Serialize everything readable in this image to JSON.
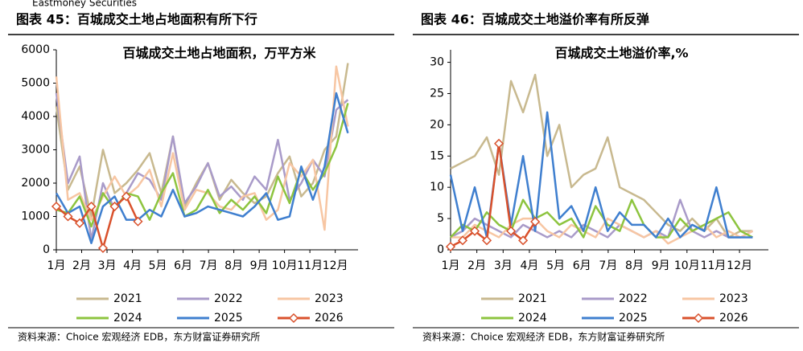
{
  "header": {
    "brand": "Eastmoney Securities"
  },
  "chart_data": [
    {
      "type": "line",
      "figure_title": "图表 45：百城成交土地占地面积有所下行",
      "title": "百城成交土地占地面积，万平方米",
      "source": "资料来源：Choice 宏观经济 EDB，东方财富证券研究所",
      "x": [
        1,
        1.46,
        1.92,
        2.38,
        2.84,
        3.3,
        3.76,
        4.22,
        4.68,
        5.14,
        5.6,
        6.06,
        6.52,
        6.98,
        7.44,
        7.9,
        8.36,
        8.82,
        9.28,
        9.74,
        10.2,
        10.66,
        11.12,
        11.58,
        12.04,
        12.5
      ],
      "xlim": [
        1,
        12.9
      ],
      "ylim": [
        0,
        6000
      ],
      "yticks": [
        0,
        1000,
        2000,
        3000,
        4000,
        5000,
        6000
      ],
      "xticks": [
        {
          "value": 1,
          "label": "1月"
        },
        {
          "value": 2,
          "label": "2月"
        },
        {
          "value": 3,
          "label": "3月"
        },
        {
          "value": 4,
          "label": "4月"
        },
        {
          "value": 5,
          "label": "5月"
        },
        {
          "value": 6,
          "label": "6月"
        },
        {
          "value": 7,
          "label": "7月"
        },
        {
          "value": 8,
          "label": "8月"
        },
        {
          "value": 9,
          "label": "9月"
        },
        {
          "value": 10,
          "label": "10月"
        },
        {
          "value": 11,
          "label": "11月"
        },
        {
          "value": 12,
          "label": "12月"
        }
      ],
      "series": [
        {
          "name": "2021",
          "color": "#c8b98f",
          "values": [
            4300,
            1800,
            2500,
            1000,
            3000,
            1700,
            2000,
            2400,
            2900,
            1700,
            3400,
            1300,
            2000,
            2600,
            1500,
            2100,
            1700,
            1400,
            1600,
            2300,
            2800,
            1600,
            2000,
            3000,
            3400,
            5600
          ]
        },
        {
          "name": "2022",
          "color": "#a99bc9",
          "values": [
            4700,
            2000,
            2800,
            300,
            2000,
            1200,
            1700,
            2300,
            2100,
            1500,
            3400,
            1400,
            1900,
            2600,
            1600,
            1900,
            1500,
            2200,
            1800,
            3300,
            1500,
            2000,
            2700,
            2200,
            4200,
            4500
          ]
        },
        {
          "name": "2023",
          "color": "#f7c6a3",
          "values": [
            5200,
            1500,
            1700,
            900,
            1600,
            2200,
            1600,
            1900,
            2400,
            1300,
            2900,
            1200,
            1800,
            1700,
            1300,
            1200,
            1600,
            1700,
            900,
            1200,
            2600,
            2200,
            2700,
            600,
            5500,
            3700
          ]
        },
        {
          "name": "2024",
          "color": "#8dc43f",
          "values": [
            1200,
            1100,
            1600,
            700,
            1700,
            1200,
            1700,
            1600,
            900,
            1700,
            2300,
            1000,
            1200,
            1800,
            1100,
            1500,
            1200,
            1600,
            1100,
            2200,
            1400,
            2400,
            1800,
            2300,
            3100,
            4400
          ]
        },
        {
          "name": "2025",
          "color": "#3f7fcf",
          "values": [
            1700,
            1100,
            1300,
            200,
            1300,
            1600,
            900,
            900,
            1200,
            1000,
            1800,
            1000,
            1100,
            1300,
            1200,
            1100,
            1000,
            1300,
            1700,
            900,
            1000,
            2500,
            1500,
            2500,
            4700,
            3500
          ]
        },
        {
          "name": "2026",
          "color": "#d9512c",
          "marker": "diamond",
          "values": [
            1300,
            1000,
            800,
            1300,
            50,
            1300,
            1600,
            850,
            null,
            null,
            null,
            null,
            null,
            null,
            null,
            null,
            null,
            null,
            null,
            null,
            null,
            null,
            null,
            null,
            null,
            null
          ]
        }
      ]
    },
    {
      "type": "line",
      "figure_title": "图表 46：百城成交土地溢价率有所反弹",
      "title": "百城成交土地溢价率,%",
      "source": "资料来源：Choice 宏观经济 EDB，东方财富证券研究所",
      "x": [
        1,
        1.46,
        1.92,
        2.38,
        2.84,
        3.3,
        3.76,
        4.22,
        4.68,
        5.14,
        5.6,
        6.06,
        6.52,
        6.98,
        7.44,
        7.9,
        8.36,
        8.82,
        9.28,
        9.74,
        10.2,
        10.66,
        11.12,
        11.58,
        12.04,
        12.5
      ],
      "xlim": [
        1,
        13.1
      ],
      "ylim": [
        0,
        32
      ],
      "yticks": [
        0,
        5,
        10,
        15,
        20,
        25,
        30
      ],
      "xticks": [
        {
          "value": 1,
          "label": "1月"
        },
        {
          "value": 2,
          "label": "2月"
        },
        {
          "value": 3,
          "label": "3月"
        },
        {
          "value": 4,
          "label": "4月"
        },
        {
          "value": 5,
          "label": "5月"
        },
        {
          "value": 6,
          "label": "6月"
        },
        {
          "value": 7,
          "label": "7月"
        },
        {
          "value": 8,
          "label": "8月"
        },
        {
          "value": 9,
          "label": "9月"
        },
        {
          "value": 10,
          "label": "10月"
        },
        {
          "value": 11,
          "label": "11月"
        },
        {
          "value": 12,
          "label": "12月"
        }
      ],
      "series": [
        {
          "name": "2021",
          "color": "#c8b98f",
          "values": [
            13,
            14,
            15,
            18,
            12,
            27,
            22,
            28,
            15,
            20,
            10,
            12,
            13,
            18,
            10,
            9,
            8,
            6,
            4,
            3,
            5,
            3,
            5,
            2,
            3,
            3
          ]
        },
        {
          "name": "2022",
          "color": "#a99bc9",
          "values": [
            2,
            3,
            5,
            4,
            3,
            2,
            4,
            3,
            2,
            3,
            2,
            4,
            3,
            2,
            4,
            3,
            2,
            3,
            2,
            8,
            3,
            2,
            3,
            2,
            2,
            3
          ]
        },
        {
          "name": "2023",
          "color": "#f7c6a3",
          "values": [
            2,
            2,
            4,
            3,
            2,
            4,
            5,
            5,
            3,
            2,
            4,
            3,
            2,
            5,
            4,
            3,
            2,
            3,
            1,
            2,
            3,
            4,
            2,
            3,
            2,
            3
          ]
        },
        {
          "name": "2024",
          "color": "#8dc43f",
          "values": [
            2,
            4,
            3,
            6,
            4,
            3,
            8,
            5,
            6,
            4,
            5,
            2,
            7,
            4,
            3,
            8,
            4,
            2,
            2,
            5,
            3,
            4,
            5,
            6,
            3,
            2
          ]
        },
        {
          "name": "2025",
          "color": "#3f7fcf",
          "values": [
            12,
            3,
            10,
            2,
            17,
            4,
            15,
            3,
            22,
            5,
            7,
            3,
            10,
            3,
            6,
            4,
            4,
            2,
            5,
            2,
            4,
            3,
            10,
            2,
            2,
            2
          ]
        },
        {
          "name": "2026",
          "color": "#d9512c",
          "marker": "diamond",
          "values": [
            0.5,
            1.5,
            3,
            1.5,
            17,
            3,
            1.5,
            4.5,
            null,
            null,
            null,
            null,
            null,
            null,
            null,
            null,
            null,
            null,
            null,
            null,
            null,
            null,
            null,
            null,
            null,
            null
          ]
        }
      ]
    }
  ]
}
